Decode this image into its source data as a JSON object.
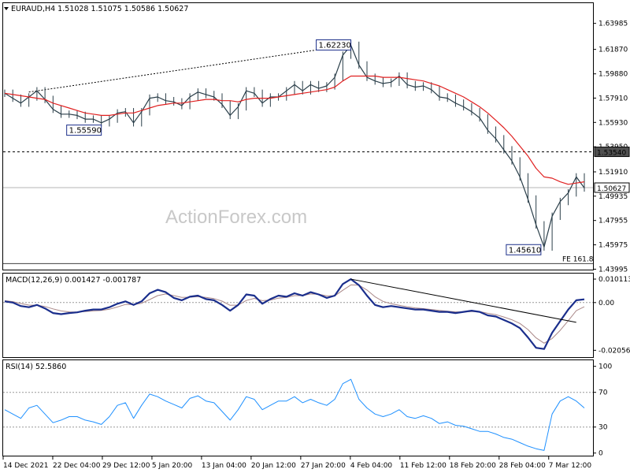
{
  "header": {
    "main": "EURAUD,H4  1.51028 1.51075 1.50586 1.50627",
    "macd": "MACD(12,26,9) 0.001427 -0.001787",
    "rsi": "RSI(14) 52.5860"
  },
  "watermark": "ActionForex.com",
  "chart_data": [
    {
      "type": "line",
      "name": "price",
      "ylim": [
        1.4396,
        1.6563
      ],
      "y_ticks": [
        "1.63985",
        "1.61870",
        "1.59880",
        "1.57910",
        "1.55930",
        "1.53950",
        "1.51910",
        "1.49935",
        "1.47955",
        "1.45975",
        "1.43995"
      ],
      "x_ticks": [
        "14 Dec 2021",
        "22 Dec 04:00",
        "29 Dec 12:00",
        "5 Jan 20:00",
        "13 Jan 04:00",
        "20 Jan 12:00",
        "27 Jan 20:00",
        "4 Feb 04:00",
        "11 Feb 12:00",
        "18 Feb 20:00",
        "28 Feb 04:00",
        "7 Mar 12:00"
      ],
      "series": [
        {
          "values": [
            1.583,
            1.579,
            1.575,
            1.58,
            1.585,
            1.578,
            1.57,
            1.566,
            1.566,
            1.565,
            1.562,
            1.562,
            1.559,
            1.562,
            1.567,
            1.568,
            1.559,
            1.568,
            1.579,
            1.58,
            1.577,
            1.576,
            1.573,
            1.58,
            1.584,
            1.582,
            1.58,
            1.574,
            1.565,
            1.572,
            1.585,
            1.583,
            1.575,
            1.58,
            1.58,
            1.585,
            1.59,
            1.585,
            1.59,
            1.587,
            1.589,
            1.596,
            1.614,
            1.622,
            1.606,
            1.596,
            1.593,
            1.591,
            1.592,
            1.597,
            1.59,
            1.588,
            1.589,
            1.586,
            1.58,
            1.579,
            1.575,
            1.572,
            1.568,
            1.563,
            1.553,
            1.546,
            1.537,
            1.528,
            1.515,
            1.497,
            1.476,
            1.458,
            1.483,
            1.495,
            1.502,
            1.515,
            1.506
          ]
        },
        {
          "name": "MA",
          "values": [
            1.583,
            1.582,
            1.581,
            1.58,
            1.579,
            1.578,
            1.575,
            1.573,
            1.571,
            1.569,
            1.567,
            1.566,
            1.565,
            1.565,
            1.566,
            1.567,
            1.567,
            1.569,
            1.571,
            1.573,
            1.574,
            1.575,
            1.575,
            1.576,
            1.577,
            1.578,
            1.578,
            1.577,
            1.577,
            1.576,
            1.578,
            1.579,
            1.579,
            1.579,
            1.58,
            1.581,
            1.582,
            1.583,
            1.584,
            1.585,
            1.586,
            1.588,
            1.593,
            1.597,
            1.597,
            1.597,
            1.597,
            1.596,
            1.596,
            1.596,
            1.595,
            1.594,
            1.593,
            1.591,
            1.589,
            1.586,
            1.583,
            1.58,
            1.576,
            1.572,
            1.567,
            1.561,
            1.555,
            1.548,
            1.54,
            1.532,
            1.522,
            1.515,
            1.514,
            1.511,
            1.509,
            1.51,
            1.511
          ]
        }
      ],
      "levels": [
        {
          "value": 1.5354,
          "label": "1.53540",
          "style": "dashed"
        },
        {
          "value": 1.50627,
          "label": "1.50627",
          "style": "solid-gray"
        },
        {
          "value": 1.4445,
          "label": "FE 161.8",
          "style": "solid-dark"
        }
      ],
      "annotations": [
        {
          "label": "1.62230",
          "xi": 43,
          "value": 1.6223
        },
        {
          "label": "1.55590",
          "xi": 12,
          "value": 1.5559
        },
        {
          "label": "1.45610",
          "xi": 67,
          "value": 1.4561
        }
      ],
      "trendline": {
        "from": {
          "xi": 3,
          "value": 1.584
        },
        "to": {
          "xi": 43,
          "value": 1.6223
        }
      }
    },
    {
      "type": "line",
      "name": "MACD(12,26,9)",
      "ylim": [
        -0.0235,
        0.0125
      ],
      "y_ticks": [
        "0.010113",
        "0.00",
        "-0.020561"
      ],
      "series": [
        {
          "name": "MACD",
          "values": [
            0.0005,
            0.0,
            -0.0015,
            -0.002,
            -0.001,
            -0.0025,
            -0.0045,
            -0.005,
            -0.0045,
            -0.0042,
            -0.0035,
            -0.003,
            -0.003,
            -0.002,
            -0.0005,
            0.0005,
            -0.001,
            0.0005,
            0.004,
            0.0055,
            0.0045,
            0.002,
            0.001,
            0.0025,
            0.003,
            0.0015,
            0.001,
            -0.001,
            -0.0035,
            -0.001,
            0.0035,
            0.003,
            -0.0005,
            0.0015,
            0.003,
            0.0025,
            0.004,
            0.003,
            0.0045,
            0.0035,
            0.002,
            0.003,
            0.008,
            0.0101,
            0.0075,
            0.003,
            -0.001,
            -0.002,
            -0.0015,
            -0.002,
            -0.0025,
            -0.003,
            -0.003,
            -0.0035,
            -0.004,
            -0.004,
            -0.0045,
            -0.004,
            -0.0035,
            -0.004,
            -0.0055,
            -0.006,
            -0.0075,
            -0.009,
            -0.011,
            -0.015,
            -0.0195,
            -0.02,
            -0.013,
            -0.008,
            -0.003,
            0.001,
            0.0014
          ]
        },
        {
          "name": "signal",
          "values": [
            0.0008,
            0.0004,
            -0.0004,
            -0.0011,
            -0.0012,
            -0.0017,
            -0.0027,
            -0.0036,
            -0.004,
            -0.0041,
            -0.0039,
            -0.0036,
            -0.0034,
            -0.0029,
            -0.0019,
            -0.0008,
            -0.0008,
            -0.0003,
            0.0013,
            0.003,
            0.0037,
            0.003,
            0.0022,
            0.0023,
            0.0026,
            0.0022,
            0.0017,
            0.0006,
            -0.0012,
            -0.0011,
            0.0009,
            0.0018,
            0.0008,
            0.0011,
            0.0019,
            0.0022,
            0.003,
            0.003,
            0.0037,
            0.0036,
            0.0029,
            0.0029,
            0.0053,
            0.0076,
            0.0075,
            0.0054,
            0.0025,
            0.0005,
            -0.0005,
            -0.0012,
            -0.0018,
            -0.0023,
            -0.0026,
            -0.003,
            -0.0034,
            -0.0037,
            -0.004,
            -0.004,
            -0.0039,
            -0.0039,
            -0.0046,
            -0.0052,
            -0.0062,
            -0.0074,
            -0.009,
            -0.0116,
            -0.0152,
            -0.0175,
            -0.0155,
            -0.012,
            -0.0078,
            -0.0035,
            -0.0018
          ]
        }
      ],
      "trendline": {
        "from": {
          "xi": 43,
          "value": 0.0101
        },
        "to": {
          "xi": 71,
          "value": -0.0085
        }
      }
    },
    {
      "type": "line",
      "name": "RSI(14)",
      "ylim": [
        -3,
        107
      ],
      "y_ticks": [
        "100",
        "70",
        "30",
        "0"
      ],
      "levels": [
        70,
        30
      ],
      "series": [
        {
          "name": "RSI",
          "values": [
            50,
            45,
            40,
            52,
            55,
            45,
            35,
            38,
            42,
            42,
            38,
            36,
            33,
            42,
            55,
            58,
            40,
            55,
            68,
            65,
            60,
            56,
            52,
            63,
            66,
            60,
            58,
            48,
            38,
            50,
            65,
            62,
            50,
            55,
            60,
            60,
            65,
            58,
            62,
            58,
            55,
            62,
            80,
            85,
            62,
            52,
            45,
            42,
            45,
            50,
            42,
            40,
            43,
            40,
            34,
            36,
            32,
            31,
            28,
            25,
            25,
            22,
            18,
            16,
            12,
            8,
            5,
            3,
            45,
            60,
            65,
            60,
            52
          ]
        }
      ]
    }
  ]
}
